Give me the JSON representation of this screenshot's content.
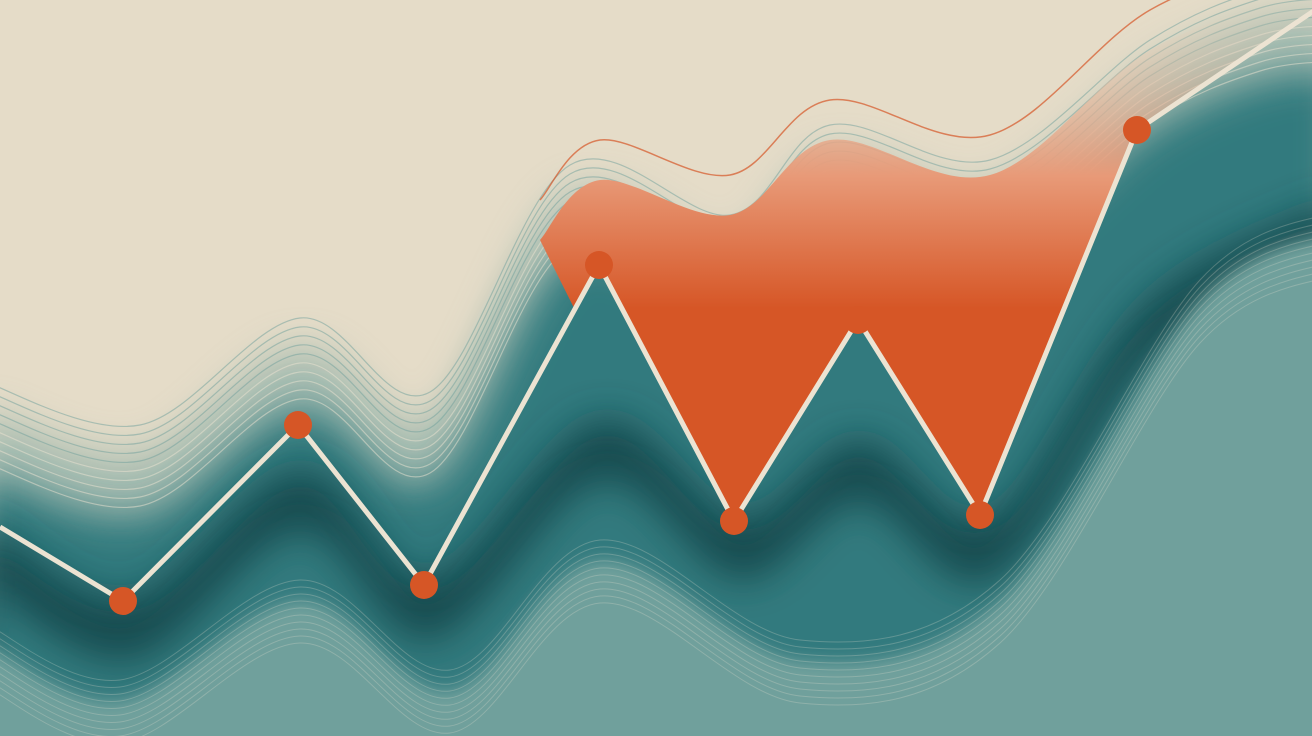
{
  "palette": {
    "background": "#e5dcc8",
    "teal_dark": "#174a4e",
    "teal_mid": "#327a7e",
    "teal_light": "#6fa09c",
    "orange": "#d65626",
    "orange_soft": "#e89a78",
    "line": "#ece3d2"
  },
  "illustration": {
    "subject": "zigzag-line-over-wavy-bands",
    "marker_count": 8
  }
}
